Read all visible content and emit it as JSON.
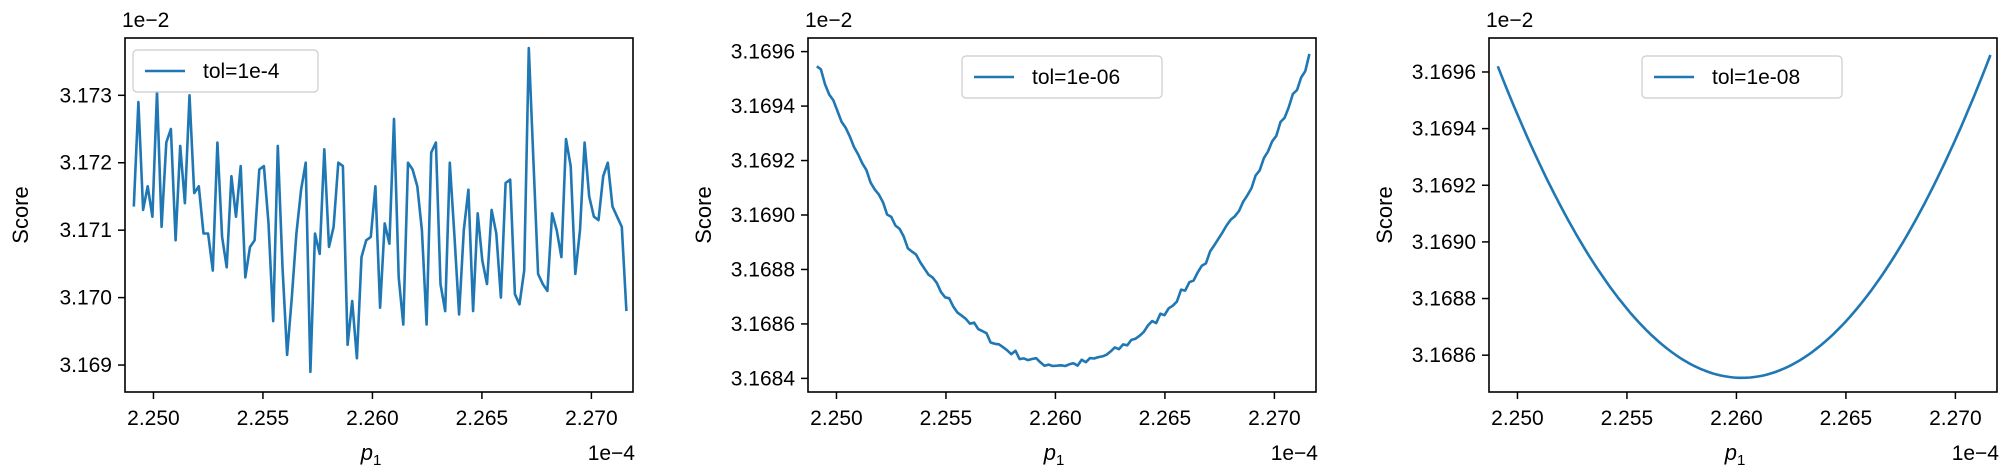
{
  "chart_data": [
    {
      "type": "line",
      "xlabel": "p",
      "xlabel_sub": "1",
      "ylabel": "Score",
      "x_multiplier": "1e−4",
      "y_multiplier": "1e−2",
      "xlim": [
        2.2487,
        2.2719
      ],
      "ylim": [
        3.1686,
        3.17385
      ],
      "x_ticks": [
        2.25,
        2.255,
        2.26,
        2.265,
        2.27
      ],
      "x_tick_labels": [
        "2.250",
        "2.255",
        "2.260",
        "2.265",
        "2.270"
      ],
      "y_ticks": [
        3.169,
        3.17,
        3.171,
        3.172,
        3.173
      ],
      "y_tick_labels": [
        "3.169",
        "3.170",
        "3.171",
        "3.172",
        "3.173"
      ],
      "legend_location": "top-left",
      "grid": false,
      "series": [
        {
          "name": "tol=1e-4",
          "color": "#1f77b4",
          "x_start": 2.2491,
          "x_end": 2.2716,
          "y": [
            3.17135,
            3.1729,
            3.1713,
            3.17165,
            3.1712,
            3.17305,
            3.17105,
            3.1723,
            3.1725,
            3.17085,
            3.17225,
            3.1714,
            3.173,
            3.17155,
            3.17165,
            3.17095,
            3.17095,
            3.1704,
            3.1723,
            3.1709,
            3.17045,
            3.1718,
            3.1712,
            3.17195,
            3.1703,
            3.17075,
            3.17085,
            3.1719,
            3.17195,
            3.1711,
            3.16965,
            3.17225,
            3.17045,
            3.16915,
            3.17,
            3.17095,
            3.1716,
            3.172,
            3.1689,
            3.17095,
            3.17065,
            3.1722,
            3.17075,
            3.17105,
            3.172,
            3.17195,
            3.1693,
            3.16995,
            3.1691,
            3.1706,
            3.17085,
            3.1709,
            3.17165,
            3.16985,
            3.1711,
            3.1708,
            3.17265,
            3.1703,
            3.1696,
            3.172,
            3.1719,
            3.17165,
            3.171,
            3.1696,
            3.17215,
            3.1723,
            3.1702,
            3.1698,
            3.172,
            3.1709,
            3.16975,
            3.171,
            3.1716,
            3.1698,
            3.17125,
            3.17055,
            3.1702,
            3.1713,
            3.17095,
            3.17,
            3.1717,
            3.17175,
            3.17005,
            3.1699,
            3.1704,
            3.1737,
            3.172,
            3.17035,
            3.1702,
            3.1701,
            3.17125,
            3.171,
            3.1706,
            3.17235,
            3.17195,
            3.17035,
            3.171,
            3.1723,
            3.1715,
            3.1712,
            3.17115,
            3.1718,
            3.172,
            3.17135,
            3.1712,
            3.17105,
            3.1698
          ]
        }
      ]
    },
    {
      "type": "line",
      "xlabel": "p",
      "xlabel_sub": "1",
      "ylabel": "Score",
      "x_multiplier": "1e−4",
      "y_multiplier": "1e−2",
      "xlim": [
        2.2487,
        2.2719
      ],
      "ylim": [
        3.16835,
        3.16965
      ],
      "x_ticks": [
        2.25,
        2.255,
        2.26,
        2.265,
        2.27
      ],
      "x_tick_labels": [
        "2.250",
        "2.255",
        "2.260",
        "2.265",
        "2.270"
      ],
      "y_ticks": [
        3.1684,
        3.1686,
        3.1688,
        3.169,
        3.1692,
        3.1694,
        3.1696
      ],
      "y_tick_labels": [
        "3.1684",
        "3.1686",
        "3.1688",
        "3.1690",
        "3.1692",
        "3.1694",
        "3.1696"
      ],
      "legend_location": "top-center",
      "grid": false,
      "series": [
        {
          "name": "tol=1e-06",
          "color": "#1f77b4",
          "x_start": 2.2491,
          "x_end": 2.2716,
          "vertex": 2.2603,
          "y_min": 3.16845,
          "y_max": 3.16958,
          "noise": 2.8e-05
        }
      ]
    },
    {
      "type": "line",
      "xlabel": "p",
      "xlabel_sub": "1",
      "ylabel": "Score",
      "x_multiplier": "1e−4",
      "y_multiplier": "1e−2",
      "xlim": [
        2.2487,
        2.2719
      ],
      "ylim": [
        3.16847,
        3.16972
      ],
      "x_ticks": [
        2.25,
        2.255,
        2.26,
        2.265,
        2.27
      ],
      "x_tick_labels": [
        "2.250",
        "2.255",
        "2.260",
        "2.265",
        "2.270"
      ],
      "y_ticks": [
        3.1686,
        3.1688,
        3.169,
        3.1692,
        3.1694,
        3.1696
      ],
      "y_tick_labels": [
        "3.1686",
        "3.1688",
        "3.1690",
        "3.1692",
        "3.1694",
        "3.1696"
      ],
      "legend_location": "top-center",
      "grid": false,
      "series": [
        {
          "name": "tol=1e-08",
          "color": "#1f77b4",
          "x_start": 2.2491,
          "x_end": 2.2716,
          "vertex": 2.26025,
          "y_min": 3.16852,
          "y_max": 3.16966,
          "noise": 0
        }
      ]
    }
  ]
}
